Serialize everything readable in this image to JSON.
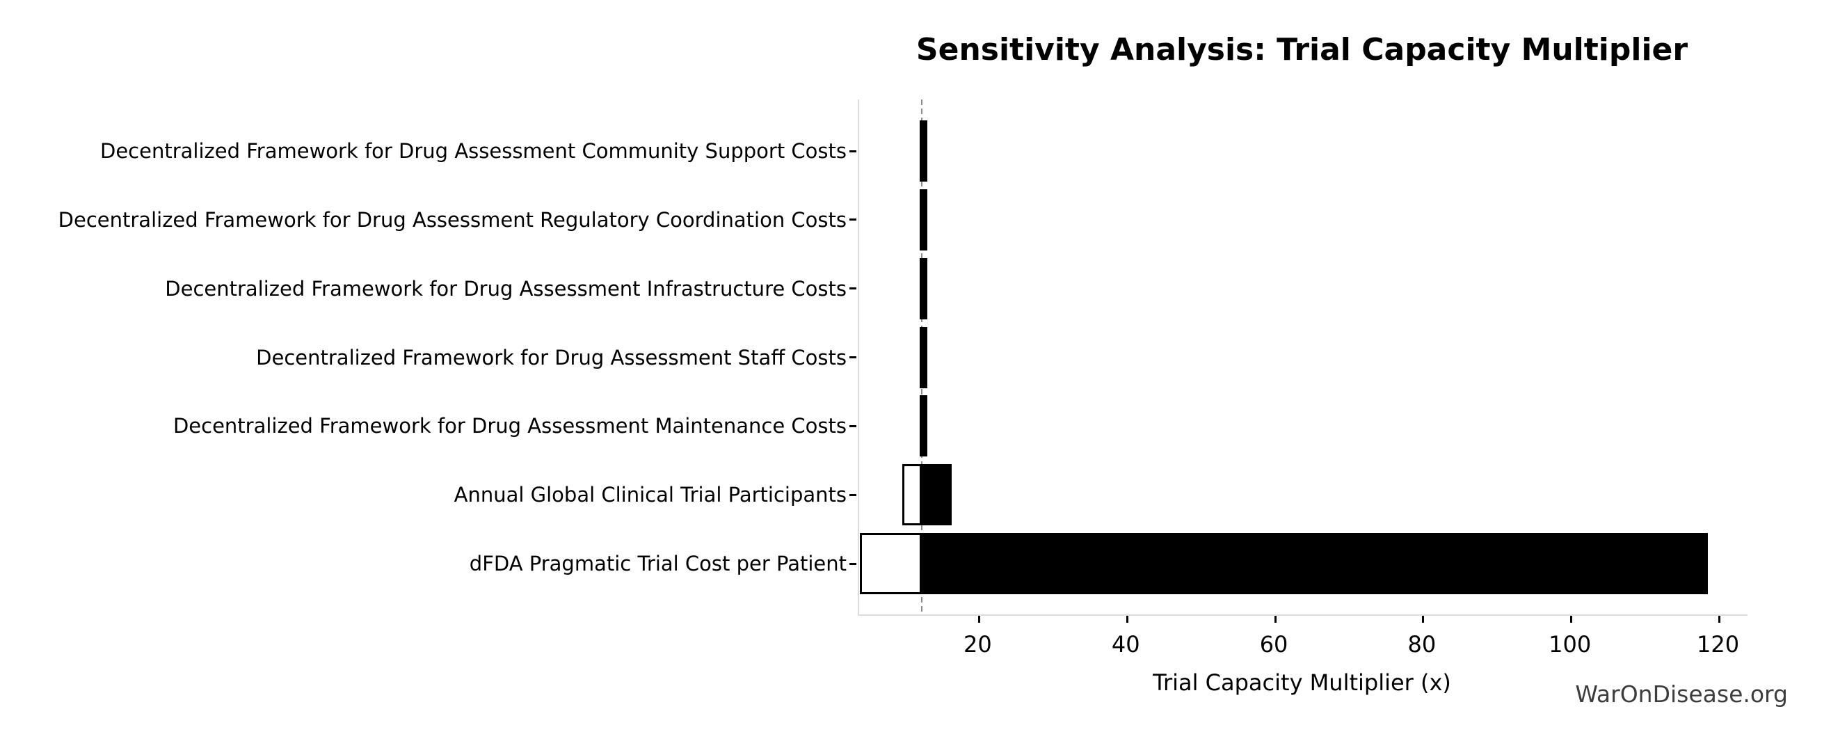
{
  "watermark": {
    "text": "WarOnDisease.org",
    "color": "#3d3d3d"
  },
  "chart_data": {
    "type": "bar",
    "subtype": "tornado-sensitivity",
    "orientation": "horizontal",
    "title": "Sensitivity Analysis: Trial Capacity Multiplier",
    "xlabel": "Trial Capacity Multiplier (x)",
    "ylabel": "",
    "xlim": [
      3.8,
      123.8
    ],
    "x_ticks": [
      20,
      40,
      60,
      80,
      100,
      120
    ],
    "baseline": 12.3,
    "grid": false,
    "legend_position": "none",
    "categories": [
      "Decentralized Framework for Drug Assessment Community Support Costs",
      "Decentralized Framework for Drug Assessment Regulatory Coordination Costs",
      "Decentralized Framework for Drug Assessment Infrastructure Costs",
      "Decentralized Framework for Drug Assessment Staff Costs",
      "Decentralized Framework for Drug Assessment Maintenance Costs",
      "Annual Global Clinical Trial Participants",
      "dFDA Pragmatic Trial Cost per Patient"
    ],
    "series": [
      {
        "name": "low_value",
        "fill": "#ffffff",
        "values": [
          12.2,
          12.2,
          12.2,
          12.2,
          12.2,
          9.9,
          4.2
        ]
      },
      {
        "name": "high_value",
        "fill": "#000000",
        "values": [
          12.7,
          12.7,
          12.7,
          12.7,
          12.7,
          16.0,
          118.2
        ]
      }
    ],
    "colors": {
      "bar_edge": "#000000",
      "bar_fill_high": "#000000",
      "bar_fill_low": "#ffffff",
      "baseline_line": "#8a8a8a",
      "spine": "#dcdcdc",
      "text": "#000000"
    }
  }
}
